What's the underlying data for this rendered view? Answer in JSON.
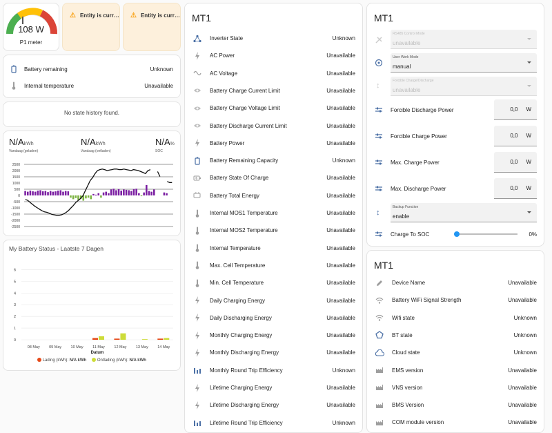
{
  "gauge": {
    "value_text": "108 W",
    "label": "P1 meter",
    "fraction": 0.35,
    "colors": [
      "#4caf50",
      "#ffc107",
      "#db4437"
    ]
  },
  "warnings": [
    {
      "text": "Entity is curr…"
    },
    {
      "text": "Entity is curr…"
    }
  ],
  "battery_card": {
    "rows": [
      {
        "name": "Battery remaining",
        "value": "Unknown",
        "icon": "battery-unknown-icon"
      },
      {
        "name": "Internal temperature",
        "value": "Unavailable",
        "icon": "thermometer-icon"
      }
    ]
  },
  "history_card": {
    "text": "No state history found."
  },
  "energy_card": {
    "stats": [
      {
        "value": "N/A",
        "unit": "kWh",
        "label": "Vandaag (geladen)"
      },
      {
        "value": "N/A",
        "unit": "kWh",
        "label": "Vandaag (ontladen)"
      },
      {
        "value": "N/A",
        "unit": "%",
        "label": "SOC"
      }
    ]
  },
  "chart_data": [
    {
      "type": "bar",
      "y_ticks": [
        "2500",
        "2000",
        "1500",
        "1000",
        "500",
        "0",
        "-500",
        "-1000",
        "-1500",
        "-2000",
        "-2500"
      ],
      "ylim": [
        -2500,
        2500
      ],
      "bars": [
        600,
        500,
        650,
        550,
        500,
        650,
        700,
        550,
        600,
        450,
        600,
        500,
        550,
        650,
        700,
        500,
        600,
        550,
        -300,
        -500,
        -350,
        -600,
        -450,
        -700,
        -400,
        -300,
        -500,
        200,
        100,
        300,
        -300,
        400,
        500,
        300,
        800,
        900,
        700,
        850,
        650,
        800,
        750,
        700,
        600,
        850,
        900,
        300,
        -100,
        400,
        1400,
        600,
        500,
        800,
        0,
        0,
        0,
        400,
        300,
        0,
        0
      ],
      "line": [
        -400,
        -500,
        -700,
        -900,
        -1100,
        -1250,
        -1400,
        -1550,
        -1650,
        -1700,
        -1800,
        -1900,
        -1950,
        -2000,
        -2000,
        -1950,
        -1850,
        -1700,
        -1500,
        -1250,
        -1000,
        -700,
        -500,
        -300,
        0,
        500,
        1000,
        1500,
        1800,
        2200,
        2500,
        2600,
        2650,
        2600,
        2500,
        2550,
        2600,
        2650,
        2650,
        2600,
        2600,
        2650,
        2600,
        2550,
        2500,
        2600,
        2550,
        2500,
        2400,
        2300,
        2200,
        2500,
        2600,
        null,
        null,
        2400,
        1900,
        null,
        null,
        1400,
        1300,
        1300
      ]
    },
    {
      "type": "bar",
      "title": "My Battery Status - Laatste 7 Dagen",
      "xlabel": "Datum",
      "categories": [
        "08 May",
        "09 May",
        "10 May",
        "11 May",
        "12 May",
        "13 May",
        "14 May"
      ],
      "y_ticks": [
        "0",
        "1",
        "2",
        "3",
        "4",
        "5",
        "6"
      ],
      "ylim": [
        0,
        6.5
      ],
      "series": [
        {
          "name": "Lading (kWh):",
          "total": "N/A kWh",
          "color": "#e64a19",
          "values": [
            0,
            0,
            0,
            0.15,
            0.1,
            0,
            0.1
          ]
        },
        {
          "name": "Ontlading (kWh):",
          "total": "N/A kWh",
          "color": "#cddc39",
          "values": [
            0,
            0,
            0,
            0.3,
            0.55,
            0.05,
            0.15
          ]
        }
      ]
    }
  ],
  "middle_card": {
    "title": "MT1",
    "rows": [
      {
        "name": "Inverter State",
        "value": "Unknown",
        "icon": "network-icon"
      },
      {
        "name": "AC Power",
        "value": "Unavailable",
        "icon": "flash-icon"
      },
      {
        "name": "AC Voltage",
        "value": "Unavailable",
        "icon": "sine-wave-icon"
      },
      {
        "name": "Battery Charge Current Limit",
        "value": "Unavailable",
        "icon": "eye-icon"
      },
      {
        "name": "Battery Charge Voltage Limit",
        "value": "Unavailable",
        "icon": "eye-icon"
      },
      {
        "name": "Battery Discharge Current Limit",
        "value": "Unavailable",
        "icon": "eye-icon"
      },
      {
        "name": "Battery Power",
        "value": "Unavailable",
        "icon": "flash-icon"
      },
      {
        "name": "Battery Remaining Capacity",
        "value": "Unknown",
        "icon": "battery-unknown-icon"
      },
      {
        "name": "Battery State Of Charge",
        "value": "Unavailable",
        "icon": "battery-charging-icon"
      },
      {
        "name": "Battery Total Energy",
        "value": "Unavailable",
        "icon": "battery-icon"
      },
      {
        "name": "Internal MOS1 Temperature",
        "value": "Unavailable",
        "icon": "thermometer-icon"
      },
      {
        "name": "Internal MOS2 Temperature",
        "value": "Unavailable",
        "icon": "thermometer-icon"
      },
      {
        "name": "Internal Temperature",
        "value": "Unavailable",
        "icon": "thermometer-icon"
      },
      {
        "name": "Max. Cell Temperature",
        "value": "Unavailable",
        "icon": "thermometer-icon"
      },
      {
        "name": "Min. Cell Temperature",
        "value": "Unavailable",
        "icon": "thermometer-icon"
      },
      {
        "name": "Daily Charging Energy",
        "value": "Unavailable",
        "icon": "flash-icon"
      },
      {
        "name": "Daily Discharging Energy",
        "value": "Unavailable",
        "icon": "flash-icon"
      },
      {
        "name": "Monthly Charging Energy",
        "value": "Unavailable",
        "icon": "flash-icon"
      },
      {
        "name": "Monthly Discharging Energy",
        "value": "Unavailable",
        "icon": "flash-icon"
      },
      {
        "name": "Monthly Round Trip Efficiency",
        "value": "Unknown",
        "icon": "bar-chart-icon"
      },
      {
        "name": "Lifetime Charging Energy",
        "value": "Unavailable",
        "icon": "flash-icon"
      },
      {
        "name": "Lifetime Discharging Energy",
        "value": "Unavailable",
        "icon": "flash-icon"
      },
      {
        "name": "Lifetime Round Trip Efficiency",
        "value": "Unknown",
        "icon": "bar-chart-icon"
      }
    ]
  },
  "control_card": {
    "title": "MT1",
    "rs485": {
      "label": "RS485 Control Mode",
      "value": "unavailable"
    },
    "work_mode": {
      "label": "User Work Mode",
      "value": "manual"
    },
    "forcible": {
      "label": "Forcible Charge/Discharge",
      "value": "unavailable"
    },
    "numbers": [
      {
        "name": "Forcible Discharge Power",
        "value": "0,0",
        "unit": "W"
      },
      {
        "name": "Forcible Charge Power",
        "value": "0,0",
        "unit": "W"
      },
      {
        "name": "Max. Charge Power",
        "value": "0,0",
        "unit": "W"
      },
      {
        "name": "Max. Discharge Power",
        "value": "0,0",
        "unit": "W"
      }
    ],
    "backup": {
      "label": "Backup Function",
      "value": "enable"
    },
    "soc": {
      "name": "Charge To SOC",
      "value": "0%",
      "fraction": 0
    }
  },
  "info_card": {
    "title": "MT1",
    "rows": [
      {
        "name": "Device Name",
        "value": "Unavailable",
        "icon": "pencil-icon"
      },
      {
        "name": "Battery WiFi Signal Strength",
        "value": "Unavailable",
        "icon": "wifi-icon"
      },
      {
        "name": "Wifi state",
        "value": "Unknown",
        "icon": "wifi-icon"
      },
      {
        "name": "BT state",
        "value": "Unknown",
        "icon": "pentagon-icon"
      },
      {
        "name": "Cloud state",
        "value": "Unknown",
        "icon": "cloud-icon"
      },
      {
        "name": "EMS version",
        "value": "Unavailable",
        "icon": "factory-icon"
      },
      {
        "name": "VNS version",
        "value": "Unavailable",
        "icon": "factory-icon"
      },
      {
        "name": "BMS Version",
        "value": "Unavailable",
        "icon": "factory-icon"
      },
      {
        "name": "COM module version",
        "value": "Unavailable",
        "icon": "factory-icon"
      }
    ]
  }
}
